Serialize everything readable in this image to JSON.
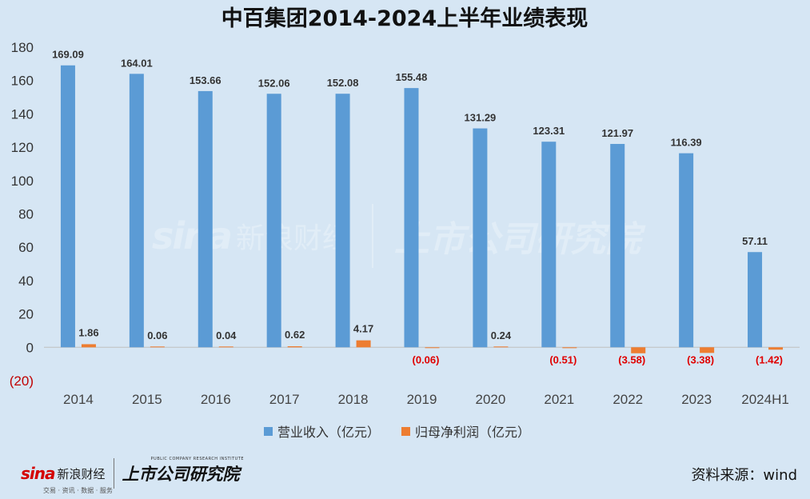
{
  "chart_data": {
    "type": "bar",
    "title": "中百集团2014-2024上半年业绩表现",
    "categories": [
      "2014",
      "2015",
      "2016",
      "2017",
      "2018",
      "2019",
      "2020",
      "2021",
      "2022",
      "2023",
      "2024H1"
    ],
    "series": [
      {
        "name": "营业收入（亿元）",
        "color": "#5b9bd5",
        "values": [
          169.09,
          164.01,
          153.66,
          152.06,
          152.08,
          155.48,
          131.29,
          123.31,
          121.97,
          116.39,
          57.11
        ],
        "labels": [
          "169.09",
          "164.01",
          "153.66",
          "152.06",
          "152.08",
          "155.48",
          "131.29",
          "123.31",
          "121.97",
          "116.39",
          "57.11"
        ]
      },
      {
        "name": "归母净利润（亿元）",
        "color": "#ed7d31",
        "values": [
          1.86,
          0.06,
          0.04,
          0.62,
          4.17,
          -0.06,
          0.24,
          -0.51,
          -3.58,
          -3.38,
          -1.42
        ],
        "labels": [
          "1.86",
          "0.06",
          "0.04",
          "0.62",
          "4.17",
          "(0.06)",
          "0.24",
          "(0.51)",
          "(3.58)",
          "(3.38)",
          "(1.42)"
        ]
      }
    ],
    "ylim": [
      -20,
      180
    ],
    "yticks": [
      180,
      160,
      140,
      120,
      100,
      80,
      60,
      40,
      20,
      0,
      -20
    ],
    "ytick_labels": [
      "180",
      "160",
      "140",
      "120",
      "100",
      "80",
      "60",
      "40",
      "20",
      "0",
      "(20)"
    ],
    "negative_color": "#e00000",
    "grid": false,
    "legend_position": "bottom"
  },
  "footer": {
    "source": "资料来源：wind",
    "logo_sina": "sina",
    "logo_sina_cn": "新浪财经",
    "logo_sina_sub": "交易 · 资讯 · 数据 · 服务",
    "logo_inst": "上市公司研究院",
    "logo_inst_en": "PUBLIC COMPANY RESEARCH INSTITUTE"
  },
  "watermark": {
    "sina": "sina",
    "sina_cn": "新浪财经",
    "inst": "上市公司研究院"
  }
}
